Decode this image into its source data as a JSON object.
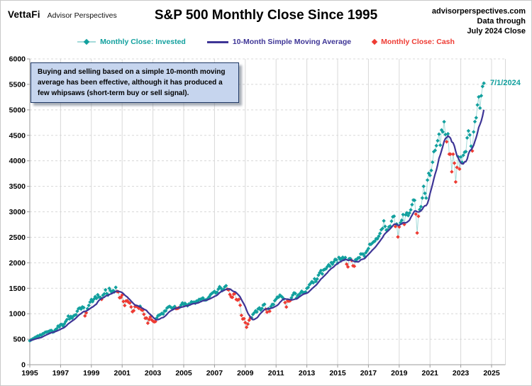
{
  "header": {
    "logo_primary": "VettaFi",
    "logo_secondary": "Advisor Perspectives",
    "title": "S&P 500 Monthly Close Since 1995",
    "source_lines": [
      "advisorperspectives.com",
      "Data through",
      "July 2024 Close"
    ]
  },
  "legend": [
    {
      "label": "Monthly Close: Invested",
      "marker": "line-diamond",
      "color": "#12A09E"
    },
    {
      "label": "10-Month Simple Moving Average",
      "marker": "line",
      "color": "#3E3596"
    },
    {
      "label": "Monthly Close: Cash",
      "marker": "diamond",
      "color": "#EE3B33"
    }
  ],
  "annotation": {
    "text": "Buying and selling based on a simple 10-month moving average has been effective, although it has produced a few whipsaws (short-term buy or sell signal)."
  },
  "last_point_label": "7/1/2024",
  "colors": {
    "invested": "#12A09E",
    "invested_connector": "#A5DBDA",
    "sma": "#3E3596",
    "cash": "#EE3B33",
    "grid": "#D8D8D8",
    "axis": "#999999",
    "tick_label": "#000000"
  },
  "chart_data": {
    "type": "line+scatter",
    "title": "S&P 500 Monthly Close Since 1995",
    "x_start": "1995-01",
    "x_end": "2024-07",
    "x_tick_years": [
      1995,
      1997,
      1999,
      2001,
      2003,
      2005,
      2007,
      2009,
      2011,
      2013,
      2015,
      2017,
      2019,
      2021,
      2023,
      2025
    ],
    "ylim": [
      0,
      6000
    ],
    "y_tick_step": 500,
    "grid": {
      "horizontal": "dashed",
      "vertical": "solid"
    },
    "legend_position": "top",
    "cash_rule": "A monthly close is shown red (Cash) when it is below the 10-month simple moving average; the SMA series is the trailing 10-month average of the monthly closes.",
    "series": [
      {
        "name": "S&P 500 Monthly Close",
        "values": [
          470.42,
          487.39,
          500.71,
          514.71,
          533.4,
          544.75,
          562.06,
          561.88,
          584.41,
          581.5,
          605.37,
          615.93,
          636.02,
          640.43,
          645.5,
          654.17,
          669.12,
          670.63,
          639.95,
          651.99,
          687.31,
          705.27,
          757.02,
          740.74,
          786.16,
          790.82,
          757.12,
          801.34,
          848.28,
          885.14,
          954.29,
          899.47,
          947.28,
          914.62,
          955.4,
          970.43,
          980.28,
          1049.34,
          1101.75,
          1111.75,
          1090.82,
          1133.84,
          1120.67,
          957.28,
          1017.01,
          1098.67,
          1163.63,
          1229.23,
          1279.64,
          1238.33,
          1286.37,
          1335.18,
          1301.84,
          1372.71,
          1328.72,
          1320.41,
          1282.71,
          1362.93,
          1388.91,
          1469.25,
          1394.46,
          1366.42,
          1498.58,
          1452.43,
          1420.6,
          1454.6,
          1430.83,
          1517.68,
          1436.51,
          1429.4,
          1314.95,
          1320.28,
          1366.01,
          1239.94,
          1160.33,
          1249.46,
          1255.82,
          1224.38,
          1211.23,
          1133.58,
          1040.94,
          1059.78,
          1139.45,
          1148.08,
          1130.2,
          1106.73,
          1147.39,
          1076.92,
          1067.14,
          989.82,
          911.62,
          916.07,
          815.28,
          885.76,
          936.31,
          879.82,
          855.7,
          841.15,
          848.18,
          916.92,
          963.59,
          974.5,
          990.31,
          1008.01,
          995.97,
          1050.71,
          1058.2,
          1111.92,
          1131.13,
          1144.94,
          1126.21,
          1107.3,
          1120.68,
          1140.84,
          1101.72,
          1104.24,
          1114.58,
          1130.2,
          1173.82,
          1211.92,
          1181.27,
          1203.6,
          1180.59,
          1156.85,
          1191.5,
          1191.33,
          1234.18,
          1220.33,
          1228.81,
          1207.01,
          1249.48,
          1248.29,
          1280.08,
          1280.66,
          1294.87,
          1310.61,
          1270.09,
          1270.2,
          1276.66,
          1303.82,
          1335.85,
          1377.94,
          1400.63,
          1418.3,
          1438.24,
          1406.82,
          1420.86,
          1482.37,
          1530.62,
          1503.35,
          1455.27,
          1473.99,
          1526.75,
          1549.38,
          1481.14,
          1468.36,
          1378.55,
          1330.63,
          1322.7,
          1385.59,
          1400.38,
          1280.0,
          1267.38,
          1282.83,
          1166.36,
          968.75,
          896.24,
          903.25,
          825.88,
          735.09,
          797.87,
          872.81,
          919.14,
          919.32,
          987.48,
          1020.62,
          1057.08,
          1036.19,
          1095.63,
          1115.1,
          1073.87,
          1104.49,
          1169.43,
          1186.69,
          1089.41,
          1030.71,
          1101.6,
          1049.33,
          1141.2,
          1183.26,
          1180.55,
          1257.64,
          1286.12,
          1327.22,
          1325.83,
          1363.61,
          1345.2,
          1320.64,
          1292.28,
          1218.89,
          1131.42,
          1253.3,
          1246.96,
          1257.6,
          1312.41,
          1365.68,
          1408.47,
          1397.91,
          1310.33,
          1362.16,
          1379.32,
          1406.58,
          1440.67,
          1412.16,
          1416.18,
          1426.19,
          1498.11,
          1514.68,
          1569.19,
          1597.57,
          1630.74,
          1606.28,
          1685.73,
          1632.97,
          1681.55,
          1756.54,
          1805.81,
          1848.36,
          1782.59,
          1859.45,
          1872.34,
          1883.95,
          1923.57,
          1960.23,
          1930.67,
          2003.37,
          1972.29,
          2018.05,
          2067.56,
          2058.9,
          1994.99,
          2104.5,
          2067.89,
          2085.51,
          2107.39,
          2063.11,
          2103.84,
          1972.18,
          1920.03,
          2079.36,
          2080.41,
          2043.94,
          1940.24,
          1932.23,
          2059.74,
          2065.3,
          2096.95,
          2098.86,
          2173.6,
          2170.95,
          2168.27,
          2126.15,
          2198.81,
          2238.83,
          2278.87,
          2363.64,
          2362.72,
          2384.2,
          2411.8,
          2423.41,
          2470.3,
          2471.65,
          2519.36,
          2575.26,
          2647.58,
          2673.61,
          2823.81,
          2713.83,
          2640.87,
          2648.05,
          2705.27,
          2718.37,
          2816.29,
          2901.52,
          2913.98,
          2711.74,
          2760.17,
          2506.85,
          2704.1,
          2784.49,
          2834.4,
          2945.83,
          2752.06,
          2941.76,
          2980.38,
          2926.46,
          2976.74,
          3037.56,
          3140.98,
          3230.78,
          3225.52,
          2954.22,
          2584.59,
          2912.43,
          3044.31,
          3100.29,
          3271.12,
          3500.31,
          3363.0,
          3269.96,
          3621.63,
          3756.07,
          3714.24,
          3811.15,
          3972.89,
          4181.17,
          4204.11,
          4297.5,
          4395.26,
          4522.68,
          4307.54,
          4605.38,
          4567.0,
          4766.18,
          4515.55,
          4373.94,
          4530.41,
          4131.93,
          4132.15,
          3785.38,
          4130.29,
          3955.0,
          3585.62,
          3871.98,
          4080.11,
          3839.5,
          4076.6,
          3970.15,
          4109.31,
          4169.48,
          4179.83,
          4450.38,
          4588.96,
          4507.66,
          4288.05,
          4193.8,
          4567.8,
          4769.83,
          4845.65,
          5096.27,
          5254.35,
          5035.69,
          5277.51,
          5460.48,
          5522.3
        ]
      },
      {
        "name": "10-Month Simple Moving Average",
        "derived_from": "S&P 500 Monthly Close",
        "window": 10
      }
    ]
  }
}
